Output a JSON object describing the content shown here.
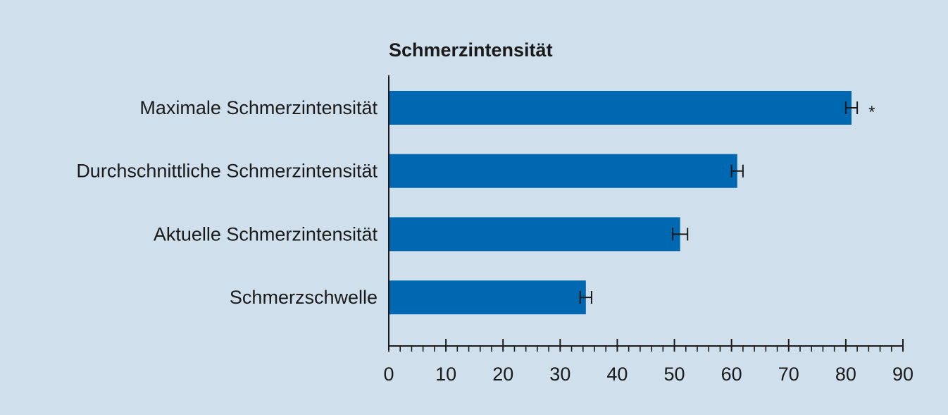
{
  "chart_data": {
    "type": "bar",
    "orientation": "horizontal",
    "title": "Schmerzintensität",
    "xlabel": "",
    "ylabel": "",
    "categories": [
      "Maximale Schmerzintensität",
      "Durchschnittliche Schmerzintensität",
      "Aktuelle Schmerzintensität",
      "Schmerzschwelle"
    ],
    "values": [
      81,
      61,
      51,
      34.5
    ],
    "errors": [
      1,
      1,
      1.3,
      1
    ],
    "annotations": [
      "*",
      "",
      "",
      ""
    ],
    "xlim": [
      0,
      90
    ],
    "x_ticks": [
      0,
      10,
      20,
      30,
      40,
      50,
      60,
      70,
      80,
      90
    ],
    "minor_tick_step": 2,
    "grid": false,
    "colors": {
      "bar": "#0068b0",
      "background": "#cfe0ec",
      "axis": "#1a1a1a",
      "text": "#1a1a1a"
    }
  }
}
